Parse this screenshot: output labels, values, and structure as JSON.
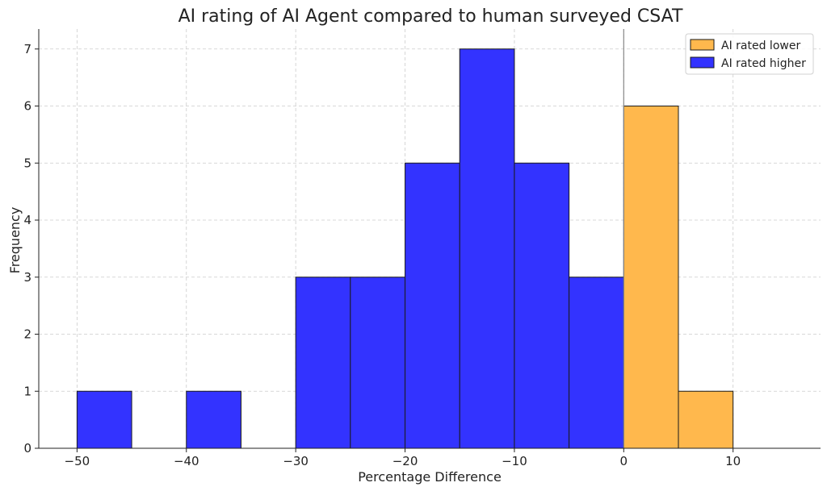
{
  "chart_data": {
    "type": "bar",
    "title": "AI rating of AI Agent compared to human surveyed CSAT",
    "xlabel": "Percentage Difference",
    "ylabel": "Frequency",
    "xlim": [
      -53.5,
      18
    ],
    "ylim": [
      0,
      7.35
    ],
    "xticks": [
      -50,
      -40,
      -30,
      -20,
      -10,
      0,
      10
    ],
    "xtick_labels": [
      "−50",
      "−40",
      "−30",
      "−20",
      "−10",
      "0",
      "10"
    ],
    "yticks": [
      0,
      1,
      2,
      3,
      4,
      5,
      6,
      7
    ],
    "grid": true,
    "legend_position": "top-right",
    "reference_line_x": 0,
    "series": [
      {
        "name": "AI rated lower",
        "color": "#ffb84d",
        "bins": [
          {
            "start": 0,
            "end": 5,
            "count": 6
          },
          {
            "start": 5,
            "end": 10,
            "count": 1
          },
          {
            "start": 10,
            "end": 15,
            "count": 0
          }
        ]
      },
      {
        "name": "AI rated higher",
        "color": "#3333ff",
        "bins": [
          {
            "start": -50,
            "end": -45,
            "count": 1
          },
          {
            "start": -45,
            "end": -40,
            "count": 0
          },
          {
            "start": -40,
            "end": -35,
            "count": 1
          },
          {
            "start": -35,
            "end": -30,
            "count": 0
          },
          {
            "start": -30,
            "end": -25,
            "count": 3
          },
          {
            "start": -25,
            "end": -20,
            "count": 3
          },
          {
            "start": -20,
            "end": -15,
            "count": 5
          },
          {
            "start": -15,
            "end": -10,
            "count": 7
          },
          {
            "start": -10,
            "end": -5,
            "count": 5
          },
          {
            "start": -5,
            "end": 0,
            "count": 3
          }
        ]
      }
    ]
  }
}
